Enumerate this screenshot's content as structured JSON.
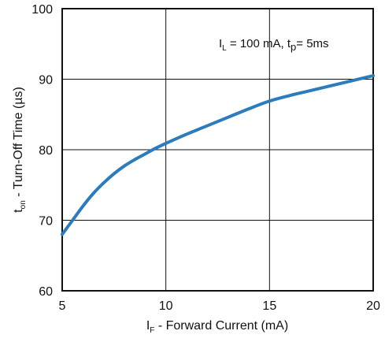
{
  "chart_data": {
    "type": "line",
    "title": "",
    "annotation": {
      "l_symbol": "I",
      "l_sub": "L",
      "l_text": " =  100 mA, ",
      "tp_symbol": "t",
      "tp_sub": "p",
      "tp_text": "= 5ms"
    },
    "xlabel": {
      "symbol": "I",
      "sub": "F",
      "text": " - Forward Current (mA)"
    },
    "ylabel": {
      "symbol": "t",
      "sub": "on",
      "text": " - Turn-Off Time (µs)"
    },
    "xlim": [
      5,
      20
    ],
    "ylim": [
      60,
      100
    ],
    "xticks": [
      5,
      10,
      15,
      20
    ],
    "yticks": [
      60,
      70,
      80,
      90,
      100
    ],
    "grid": true,
    "series": [
      {
        "color": "#2b7bbd",
        "x": [
          5,
          5.5,
          6,
          6.5,
          7,
          7.5,
          8,
          8.5,
          9,
          9.5,
          10,
          11,
          12,
          13,
          14,
          15,
          16,
          17,
          18,
          19,
          20
        ],
        "y": [
          68.0,
          70.0,
          72.0,
          73.8,
          75.3,
          76.6,
          77.7,
          78.6,
          79.4,
          80.2,
          80.9,
          82.2,
          83.4,
          84.6,
          85.8,
          86.9,
          87.7,
          88.4,
          89.1,
          89.8,
          90.5
        ]
      }
    ]
  }
}
